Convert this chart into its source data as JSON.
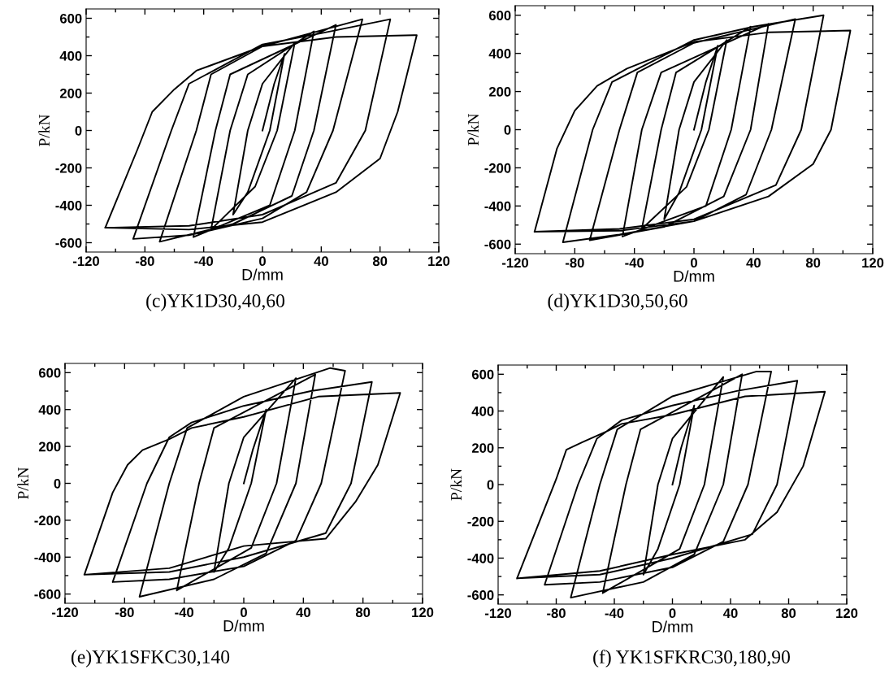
{
  "chart_data": [
    {
      "type": "line",
      "title": "(c)YK1D30,40,60",
      "xlabel": "D/mm",
      "ylabel": "P/kN",
      "xlim": [
        -120,
        120
      ],
      "ylim": [
        -650,
        650
      ],
      "xticks": [
        -120,
        -80,
        -40,
        0,
        40,
        80,
        120
      ],
      "yticks": [
        -600,
        -400,
        -200,
        0,
        200,
        400,
        600
      ],
      "series": [
        {
          "color": "#000000",
          "x": [
            0,
            8,
            15,
            5,
            -10,
            -20,
            -10,
            0,
            22,
            10,
            -5,
            -35,
            -22,
            -10,
            35,
            22,
            5,
            -47,
            -32,
            -22,
            50,
            35,
            20,
            -20,
            -70,
            -45,
            -35,
            0,
            68,
            48,
            30,
            0,
            -50,
            -88,
            -62,
            -50,
            0,
            40,
            87,
            70,
            50,
            0,
            -50,
            -107,
            -85,
            -75,
            -60,
            -45,
            0,
            50,
            105,
            92,
            80,
            50,
            0,
            -50,
            -107
          ],
          "values": [
            0,
            250,
            410,
            0,
            -330,
            -450,
            0,
            250,
            470,
            0,
            -300,
            -530,
            0,
            300,
            530,
            0,
            -400,
            -570,
            0,
            300,
            565,
            0,
            -350,
            -500,
            -595,
            0,
            300,
            450,
            595,
            0,
            -330,
            -470,
            -560,
            -580,
            0,
            250,
            460,
            520,
            595,
            0,
            -280,
            -450,
            -510,
            -520,
            -100,
            100,
            220,
            320,
            450,
            500,
            510,
            100,
            -150,
            -330,
            -490,
            -530,
            -520
          ]
        }
      ]
    },
    {
      "type": "line",
      "title": "(d)YK1D30,50,60",
      "xlabel": "D/mm",
      "ylabel": "P/kN",
      "xlim": [
        -120,
        120
      ],
      "ylim": [
        -650,
        650
      ],
      "xticks": [
        -120,
        -80,
        -40,
        0,
        40,
        80,
        120
      ],
      "yticks": [
        -600,
        -400,
        -200,
        0,
        200,
        400,
        600
      ],
      "series": [
        {
          "color": "#000000",
          "x": [
            0,
            8,
            16,
            5,
            -10,
            -20,
            -10,
            0,
            22,
            10,
            -5,
            -35,
            -22,
            -12,
            38,
            25,
            8,
            -48,
            -35,
            -22,
            50,
            38,
            20,
            -20,
            -70,
            -50,
            -38,
            0,
            68,
            52,
            35,
            0,
            -50,
            -88,
            -68,
            -55,
            0,
            40,
            87,
            72,
            55,
            0,
            -50,
            -107,
            -92,
            -80,
            -65,
            -45,
            0,
            50,
            105,
            92,
            80,
            50,
            0,
            -50,
            -107
          ],
          "values": [
            0,
            250,
            440,
            0,
            -330,
            -470,
            0,
            250,
            470,
            0,
            -300,
            -520,
            0,
            300,
            540,
            0,
            -400,
            -560,
            0,
            300,
            555,
            0,
            -350,
            -510,
            -580,
            0,
            300,
            455,
            580,
            0,
            -340,
            -480,
            -550,
            -590,
            0,
            250,
            470,
            540,
            600,
            0,
            -290,
            -470,
            -520,
            -535,
            -100,
            100,
            230,
            320,
            460,
            510,
            520,
            0,
            -180,
            -350,
            -480,
            -530,
            -535
          ]
        }
      ]
    },
    {
      "type": "line",
      "title": "(e)YK1SFKC30,140",
      "xlabel": "D/mm",
      "ylabel": "P/kN",
      "xlim": [
        -120,
        120
      ],
      "ylim": [
        -650,
        650
      ],
      "xticks": [
        -120,
        -80,
        -40,
        0,
        40,
        80,
        120
      ],
      "yticks": [
        -600,
        -400,
        -200,
        0,
        200,
        400,
        600
      ],
      "series": [
        {
          "color": "#000000",
          "x": [
            0,
            6,
            15,
            5,
            -10,
            -20,
            -10,
            0,
            35,
            22,
            5,
            -45,
            -30,
            -20,
            48,
            35,
            15,
            -20,
            -70,
            -50,
            -38,
            0,
            58,
            68,
            52,
            35,
            0,
            -50,
            -88,
            -65,
            -50,
            -35,
            0,
            45,
            86,
            72,
            55,
            0,
            -50,
            -107,
            -88,
            -78,
            -68,
            -50,
            -35,
            0,
            50,
            105,
            90,
            75,
            55,
            0,
            -50,
            -107
          ],
          "values": [
            0,
            180,
            400,
            0,
            -350,
            -480,
            0,
            250,
            570,
            0,
            -350,
            -580,
            0,
            300,
            590,
            0,
            -380,
            -520,
            -615,
            0,
            300,
            470,
            625,
            610,
            0,
            -310,
            -450,
            -520,
            -535,
            0,
            250,
            330,
            420,
            500,
            550,
            0,
            -270,
            -400,
            -480,
            -495,
            -50,
            100,
            180,
            240,
            300,
            360,
            470,
            490,
            100,
            -100,
            -300,
            -340,
            -460,
            -495
          ]
        }
      ]
    },
    {
      "type": "line",
      "title": "(f) YK1SFKRC30,180,90",
      "xlabel": "D/mm",
      "ylabel": "P/kN",
      "xlim": [
        -120,
        120
      ],
      "ylim": [
        -650,
        650
      ],
      "xticks": [
        -120,
        -80,
        -40,
        0,
        40,
        80,
        120
      ],
      "yticks": [
        -600,
        -400,
        -200,
        0,
        200,
        400,
        600
      ],
      "series": [
        {
          "color": "#000000",
          "x": [
            0,
            6,
            15,
            5,
            -10,
            -20,
            -10,
            0,
            35,
            22,
            5,
            -48,
            -32,
            -22,
            48,
            35,
            15,
            -20,
            -70,
            -50,
            -38,
            0,
            58,
            68,
            52,
            35,
            0,
            -50,
            -88,
            -65,
            -52,
            -35,
            0,
            45,
            86,
            72,
            55,
            0,
            -50,
            -107,
            -80,
            -73,
            -62,
            -45,
            -35,
            0,
            50,
            105,
            90,
            72,
            50,
            0,
            -50,
            -107
          ],
          "values": [
            0,
            200,
            430,
            0,
            -350,
            -490,
            0,
            250,
            585,
            0,
            -350,
            -590,
            0,
            300,
            600,
            0,
            -380,
            -530,
            -615,
            0,
            300,
            480,
            615,
            615,
            0,
            -310,
            -450,
            -530,
            -545,
            0,
            250,
            350,
            430,
            510,
            565,
            0,
            -270,
            -400,
            -490,
            -510,
            30,
            190,
            230,
            290,
            330,
            380,
            480,
            505,
            100,
            -150,
            -300,
            -380,
            -470,
            -510
          ]
        }
      ]
    }
  ]
}
